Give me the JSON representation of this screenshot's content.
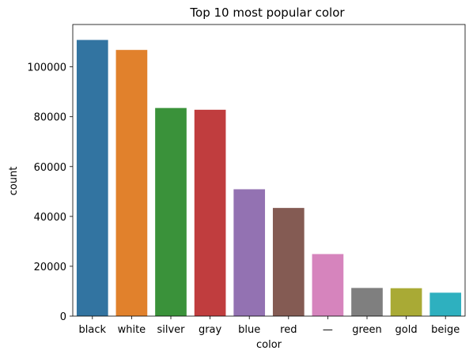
{
  "chart_data": {
    "type": "bar",
    "title": "Top 10 most popular color",
    "xlabel": "color",
    "ylabel": "count",
    "categories": [
      "black",
      "white",
      "silver",
      "gray",
      "blue",
      "red",
      "—",
      "green",
      "gold",
      "beige"
    ],
    "values": [
      110800,
      106800,
      83500,
      82800,
      50900,
      43400,
      24900,
      11300,
      11200,
      9400
    ],
    "colors": [
      "#3274a1",
      "#e1812c",
      "#3a923a",
      "#c03d3e",
      "#9372b2",
      "#845b53",
      "#d684bd",
      "#7f7f7f",
      "#a9aa35",
      "#2eb0bf"
    ],
    "ylim": [
      0,
      117000
    ],
    "yticks": [
      0,
      20000,
      40000,
      60000,
      80000,
      100000
    ],
    "ytick_labels": [
      "0",
      "20000",
      "40000",
      "60000",
      "80000",
      "100000"
    ],
    "grid": false,
    "legend": false
  }
}
